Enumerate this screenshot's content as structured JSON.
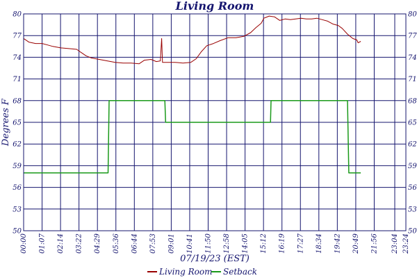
{
  "chart_data": {
    "type": "line",
    "title": "Living Room",
    "xlabel": "07/19/23 (EST)",
    "ylabel": "Degrees F",
    "ylim": [
      50,
      80
    ],
    "xlim_minutes": [
      0,
      1440
    ],
    "yticks": [
      50,
      53,
      56,
      59,
      62,
      65,
      68,
      71,
      74,
      77,
      80
    ],
    "ytick_labels": [
      "50",
      "53",
      "56",
      "59",
      "62",
      "65",
      "68",
      "71",
      "74",
      "77",
      "80"
    ],
    "xticks": [
      "00:00",
      "01:07",
      "02:14",
      "03:22",
      "04:29",
      "05:36",
      "06:44",
      "07:53",
      "09:01",
      "10:41",
      "11:50",
      "12:58",
      "14:05",
      "15:12",
      "16:19",
      "17:27",
      "18:34",
      "19:42",
      "20:49",
      "21:56",
      "23:04",
      "23:24"
    ],
    "grid": true,
    "legend_position": "bottom",
    "colors": {
      "axis": "#14146e",
      "grid": "#14146e",
      "living_room": "#990000",
      "setback": "#1a9a1a"
    },
    "series": [
      {
        "name": "Living Room",
        "points": [
          [
            0,
            76.6
          ],
          [
            20,
            76.1
          ],
          [
            45,
            75.9
          ],
          [
            70,
            75.9
          ],
          [
            90,
            75.7
          ],
          [
            110,
            75.5
          ],
          [
            140,
            75.3
          ],
          [
            170,
            75.2
          ],
          [
            200,
            75.1
          ],
          [
            215,
            74.7
          ],
          [
            235,
            74.2
          ],
          [
            255,
            73.9
          ],
          [
            285,
            73.7
          ],
          [
            315,
            73.5
          ],
          [
            345,
            73.3
          ],
          [
            375,
            73.2
          ],
          [
            405,
            73.2
          ],
          [
            435,
            73.1
          ],
          [
            455,
            73.6
          ],
          [
            480,
            73.7
          ],
          [
            500,
            73.4
          ],
          [
            515,
            73.5
          ],
          [
            520,
            76.6
          ],
          [
            523,
            73.3
          ],
          [
            545,
            73.3
          ],
          [
            570,
            73.3
          ],
          [
            600,
            73.2
          ],
          [
            630,
            73.3
          ],
          [
            650,
            73.8
          ],
          [
            670,
            74.8
          ],
          [
            690,
            75.6
          ],
          [
            715,
            75.9
          ],
          [
            740,
            76.3
          ],
          [
            770,
            76.7
          ],
          [
            800,
            76.7
          ],
          [
            830,
            76.9
          ],
          [
            855,
            77.4
          ],
          [
            875,
            78.1
          ],
          [
            895,
            78.7
          ],
          [
            905,
            79.4
          ],
          [
            925,
            79.7
          ],
          [
            945,
            79.6
          ],
          [
            965,
            79.1
          ],
          [
            985,
            79.3
          ],
          [
            1005,
            79.2
          ],
          [
            1025,
            79.3
          ],
          [
            1045,
            79.4
          ],
          [
            1065,
            79.3
          ],
          [
            1085,
            79.3
          ],
          [
            1105,
            79.4
          ],
          [
            1125,
            79.2
          ],
          [
            1145,
            79.0
          ],
          [
            1165,
            78.6
          ],
          [
            1185,
            78.4
          ],
          [
            1200,
            78.0
          ],
          [
            1220,
            77.2
          ],
          [
            1240,
            76.6
          ],
          [
            1255,
            76.4
          ],
          [
            1260,
            76.0
          ],
          [
            1270,
            76.2
          ]
        ]
      },
      {
        "name": "Setback",
        "points": [
          [
            0,
            58.0
          ],
          [
            318,
            58.0
          ],
          [
            322,
            68.0
          ],
          [
            532,
            68.0
          ],
          [
            535,
            65.0
          ],
          [
            930,
            65.0
          ],
          [
            932,
            68.0
          ],
          [
            1220,
            68.0
          ],
          [
            1225,
            58.0
          ],
          [
            1270,
            58.0
          ]
        ]
      }
    ]
  }
}
